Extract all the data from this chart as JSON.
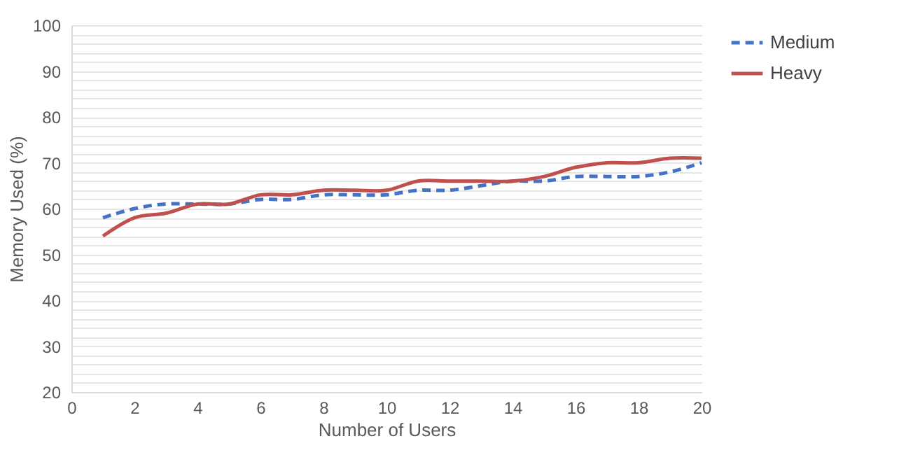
{
  "chart_data": {
    "type": "line",
    "xlabel": "Number of Users",
    "ylabel": "Memory Used (%)",
    "x": [
      1,
      2,
      3,
      4,
      5,
      6,
      7,
      8,
      9,
      10,
      11,
      12,
      13,
      14,
      15,
      16,
      17,
      18,
      19,
      20
    ],
    "series": [
      {
        "name": "Medium",
        "color": "#4472c4",
        "line_style": "dashed",
        "values": [
          58,
          60,
          61,
          61,
          61,
          62,
          62,
          63,
          63,
          63,
          64,
          64,
          65,
          66,
          66,
          67,
          67,
          67,
          68,
          70
        ]
      },
      {
        "name": "Heavy",
        "color": "#c0504d",
        "line_style": "solid",
        "values": [
          54,
          58,
          59,
          61,
          61,
          63,
          63,
          64,
          64,
          64,
          66,
          66,
          66,
          66,
          67,
          69,
          70,
          70,
          71,
          71
        ]
      }
    ],
    "xlim": [
      0,
      20
    ],
    "xticks": [
      0,
      2,
      4,
      6,
      8,
      10,
      12,
      14,
      16,
      18,
      20
    ],
    "ylim": [
      20,
      100
    ],
    "yticks": [
      20,
      {
        "value": 22,
        "label": null
      },
      {
        "value": 24,
        "label": null
      },
      {
        "value": 26,
        "label": null
      },
      {
        "value": 28,
        "label": null
      },
      30,
      {
        "value": 32,
        "label": null
      },
      {
        "value": 34,
        "label": null
      },
      {
        "value": 36,
        "label": null
      },
      {
        "value": 38,
        "label": null
      },
      40,
      {
        "value": 42,
        "label": null
      },
      {
        "value": 44,
        "label": null
      },
      {
        "value": 46,
        "label": null
      },
      {
        "value": 48,
        "label": null
      },
      50,
      {
        "value": 52,
        "label": null
      },
      {
        "value": 54,
        "label": null
      },
      {
        "value": 56,
        "label": null
      },
      {
        "value": 58,
        "label": null
      },
      60,
      {
        "value": 62,
        "label": null
      },
      {
        "value": 64,
        "label": null
      },
      {
        "value": 66,
        "label": null
      },
      {
        "value": 68,
        "label": null
      },
      70,
      {
        "value": 72,
        "label": null
      },
      {
        "value": 74,
        "label": null
      },
      {
        "value": 76,
        "label": null
      },
      {
        "value": 78,
        "label": null
      },
      80,
      {
        "value": 82,
        "label": null
      },
      {
        "value": 84,
        "label": null
      },
      {
        "value": 86,
        "label": null
      },
      {
        "value": 88,
        "label": null
      },
      90,
      {
        "value": 92,
        "label": null
      },
      {
        "value": 94,
        "label": null
      },
      {
        "value": 96,
        "label": null
      },
      {
        "value": 98,
        "label": null
      },
      100
    ],
    "grid": "y",
    "legend": "right",
    "marker": "none"
  }
}
